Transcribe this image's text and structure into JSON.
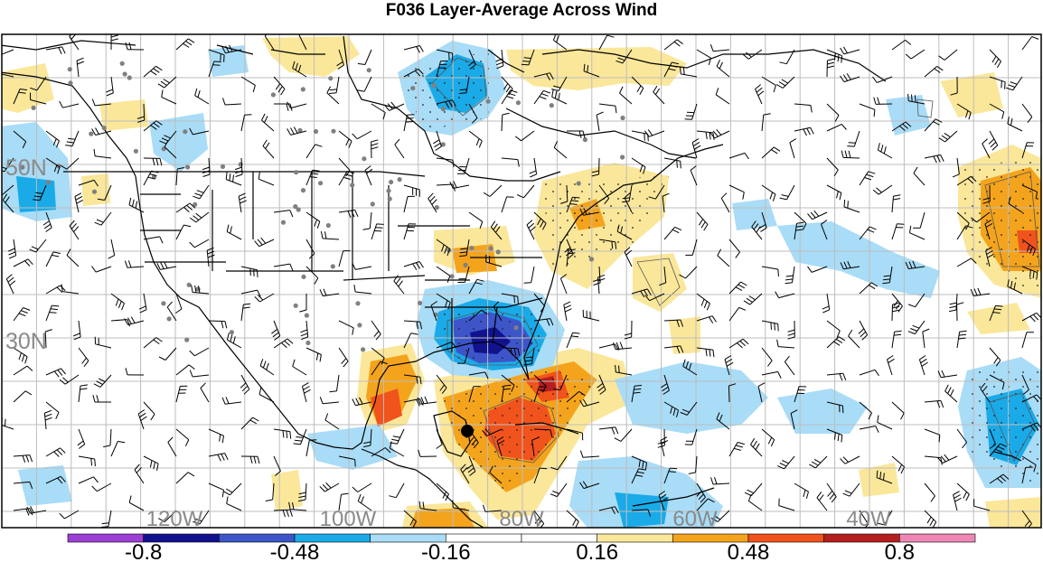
{
  "title": "F036 Layer-Average Across Wind",
  "lat_labels": [
    {
      "text": "50N",
      "lat": 50
    },
    {
      "text": "30N",
      "lat": 30
    }
  ],
  "lon_labels": [
    {
      "text": "120W",
      "lon": -120
    },
    {
      "text": "100W",
      "lon": -100
    },
    {
      "text": "80W",
      "lon": -80
    },
    {
      "text": "60W",
      "lon": -60
    },
    {
      "text": "40W",
      "lon": -40
    }
  ],
  "colorbar": {
    "colors": [
      "#9b3fd6",
      "#101290",
      "#3d55c9",
      "#1aaae8",
      "#a9dcf6",
      "#ffffff",
      "#ffffff",
      "#fbe79a",
      "#f4a41c",
      "#f1531c",
      "#b51f1f",
      "#ee87b4"
    ],
    "tick_labels": [
      {
        "text": "-0.8",
        "index": 1
      },
      {
        "text": "-0.48",
        "index": 3
      },
      {
        "text": "-0.16",
        "index": 5
      },
      {
        "text": "0.16",
        "index": 7
      },
      {
        "text": "0.48",
        "index": 9
      },
      {
        "text": "0.8",
        "index": 11
      }
    ]
  },
  "colors": {
    "grid": "#bdbdbd",
    "pale_blue": "#a9dcf6",
    "mid_blue": "#1aaae8",
    "blue": "#3d55c9",
    "dark_blue": "#101290",
    "pale_yellow": "#fbe79a",
    "orange": "#f4a41c",
    "red_orange": "#f1531c",
    "dark_red": "#b51f1f",
    "station_dot": "#808080"
  }
}
